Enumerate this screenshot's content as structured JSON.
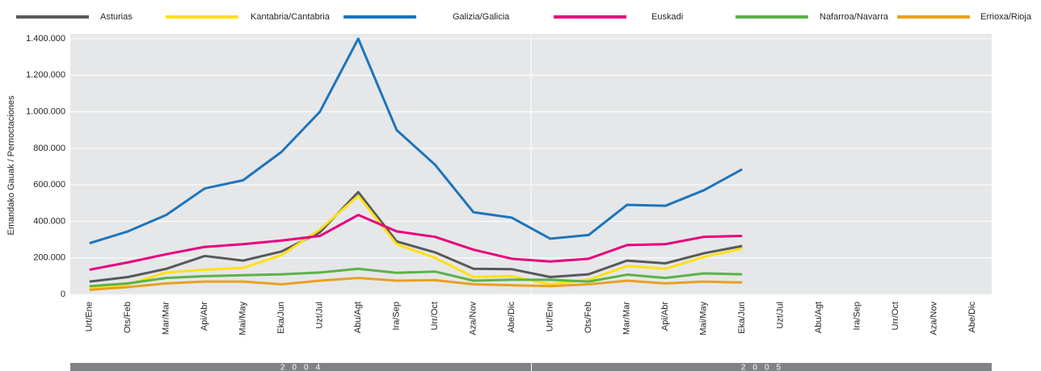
{
  "chart_data": {
    "type": "line",
    "y_label": "Emandako Gauak / Pernoctaciones",
    "categories": [
      "Urt/Ene",
      "Ots/Feb",
      "Mar/Mar",
      "Api/Abr",
      "Mai/May",
      "Eka/Jun",
      "Uzt/Jul",
      "Abu/Agt",
      "Ira/Sep",
      "Urr/Oct",
      "Aza/Nov",
      "Abe/Dic",
      "Urt/Ene",
      "Ots/Feb",
      "Mar/Mar",
      "Api/Abr",
      "Mai/May",
      "Eka/Jun",
      "Uzt/Jul",
      "Abu/Agt",
      "Ira/Sep",
      "Urr/Oct",
      "Aza/Nov",
      "Abe/Dic"
    ],
    "year_groups": [
      "2004",
      "2005"
    ],
    "ylim": [
      0,
      1400000
    ],
    "yticks": [
      {
        "value": 0,
        "label": "0"
      },
      {
        "value": 200000,
        "label": "200.000"
      },
      {
        "value": 400000,
        "label": "400.000"
      },
      {
        "value": 600000,
        "label": "600.000"
      },
      {
        "value": 800000,
        "label": "800.000"
      },
      {
        "value": 1000000,
        "label": "1.000.000"
      },
      {
        "value": 1200000,
        "label": "1.200.000"
      },
      {
        "value": 1400000,
        "label": "1.400.000"
      }
    ],
    "grid": true,
    "series": [
      {
        "name": "Asturias",
        "color": "#58595b",
        "values": [
          70000,
          95000,
          140000,
          210000,
          185000,
          235000,
          340000,
          560000,
          290000,
          230000,
          140000,
          138000,
          95000,
          110000,
          185000,
          170000,
          225000,
          265000,
          null,
          null,
          null,
          null,
          null,
          null
        ]
      },
      {
        "name": "Kantabria/Cantabria",
        "color": "#ffe014",
        "values": [
          35000,
          55000,
          120000,
          135000,
          145000,
          215000,
          355000,
          540000,
          275000,
          200000,
          95000,
          100000,
          55000,
          80000,
          155000,
          140000,
          205000,
          250000,
          null,
          null,
          null,
          null,
          null,
          null
        ]
      },
      {
        "name": "Galizia/Galicia",
        "color": "#1d75bc",
        "values": [
          280000,
          345000,
          435000,
          580000,
          625000,
          780000,
          1000000,
          1400000,
          900000,
          710000,
          450000,
          420000,
          305000,
          325000,
          490000,
          485000,
          570000,
          685000,
          null,
          null,
          null,
          null,
          null,
          null
        ]
      },
      {
        "name": "Euskadi",
        "color": "#e6007e",
        "values": [
          135000,
          175000,
          220000,
          260000,
          275000,
          295000,
          320000,
          435000,
          345000,
          315000,
          245000,
          195000,
          180000,
          195000,
          270000,
          275000,
          315000,
          320000,
          null,
          null,
          null,
          null,
          null,
          null
        ]
      },
      {
        "name": "Nafarroa/Navarra",
        "color": "#5db14a",
        "values": [
          45000,
          60000,
          90000,
          100000,
          105000,
          110000,
          120000,
          140000,
          118000,
          125000,
          75000,
          80000,
          80000,
          70000,
          108000,
          90000,
          115000,
          110000,
          null,
          null,
          null,
          null,
          null,
          null
        ]
      },
      {
        "name": "Errioxa/Rioja",
        "color": "#e8a11f",
        "values": [
          25000,
          40000,
          60000,
          70000,
          70000,
          55000,
          75000,
          90000,
          75000,
          78000,
          55000,
          50000,
          45000,
          55000,
          75000,
          60000,
          70000,
          65000,
          null,
          null,
          null,
          null,
          null,
          null
        ]
      }
    ]
  }
}
